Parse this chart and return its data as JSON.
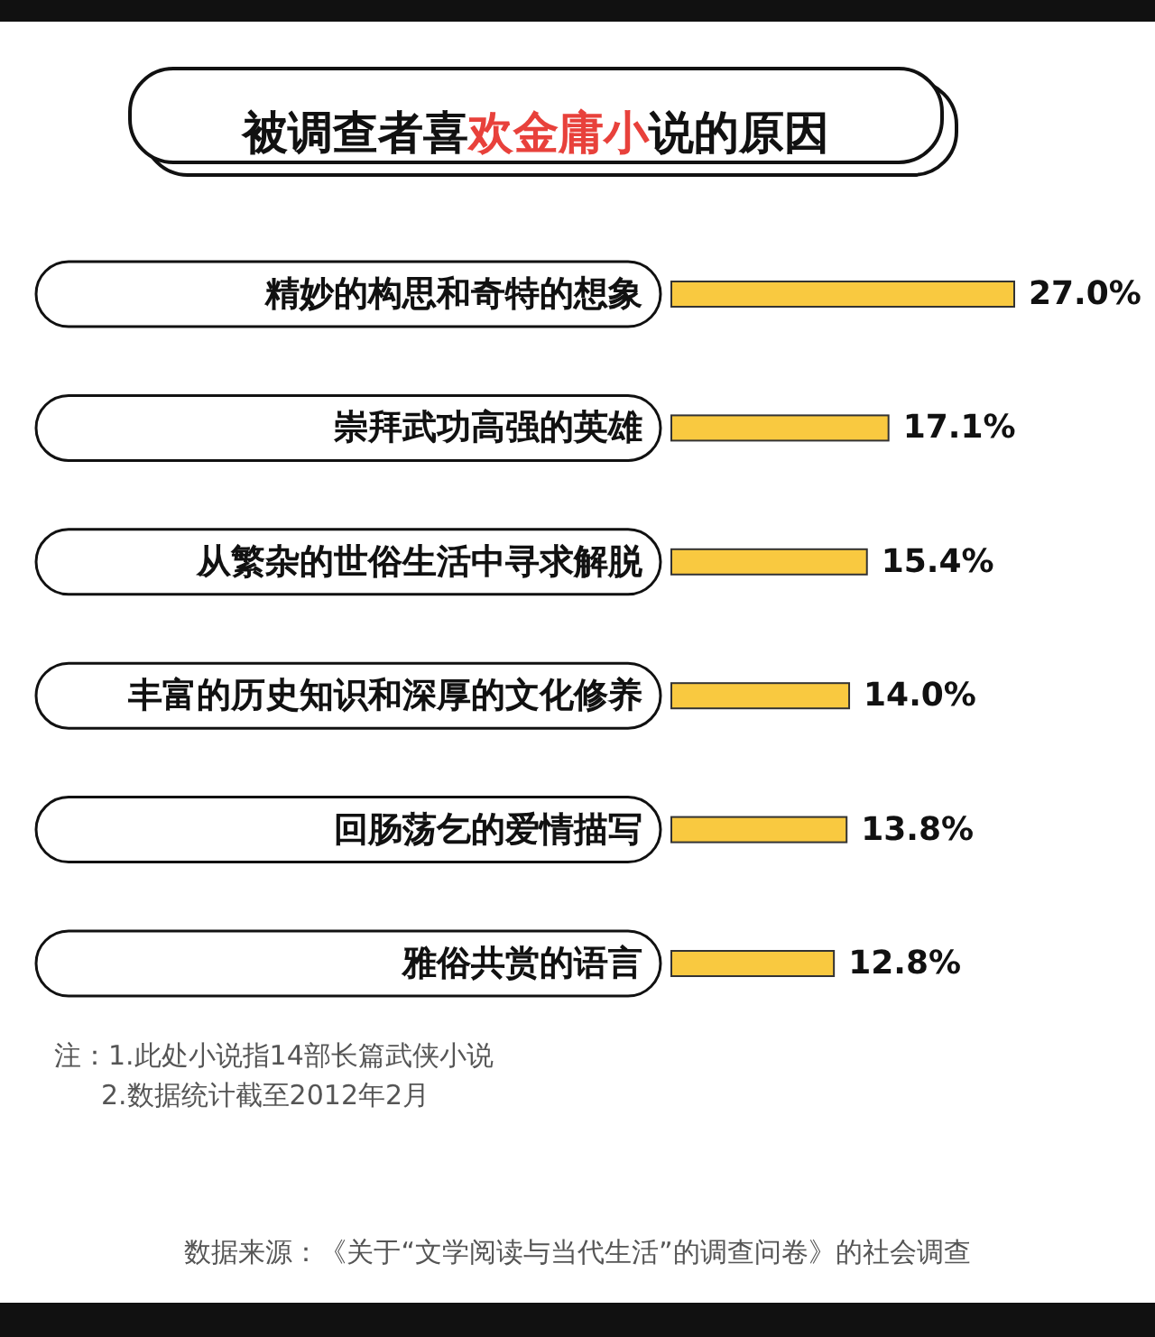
{
  "chart_data": {
    "type": "bar",
    "orientation": "horizontal",
    "title": "被调查者喜欢金庸小说的原因",
    "categories": [
      "精妙的构思和奇特的想象",
      "崇拜武功高强的英雄",
      "从繁杂的世俗生活中寻求解脱",
      "丰富的历史知识和深厚的文化修养",
      "回肠荡乞的爱情描写",
      "雅俗共赏的语言"
    ],
    "values": [
      27.0,
      17.1,
      15.4,
      14.0,
      13.8,
      12.8
    ],
    "color": "#f9c940",
    "value_labels": [
      "27.0%",
      "17.1%",
      "15.4%",
      "14.0%",
      "13.8%",
      "12.8%"
    ],
    "annotations": [
      "注：1.此处小说指14部长篇武侠小说",
      "2.数据统计截至2012年2月",
      "数据来源：《关于“文学阅读与当代生活”的调查问卷》的社会调查"
    ]
  }
}
